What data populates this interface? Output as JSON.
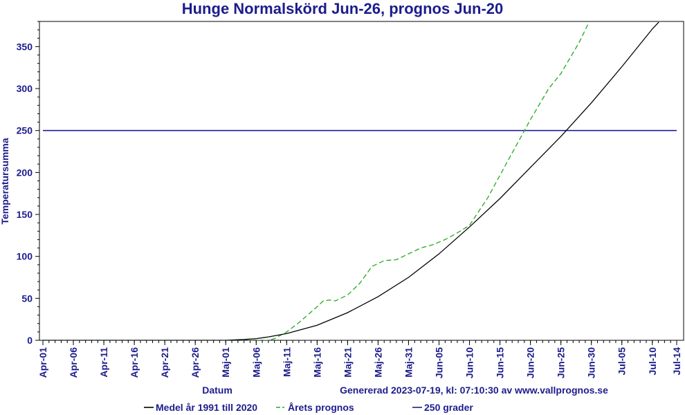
{
  "chart_data": {
    "type": "line",
    "title": "Hunge Normalskörd Jun-26, prognos Jun-20",
    "xlabel": "Datum",
    "ylabel": "Temperatursumma",
    "footer": "Genererad 2023-07-19, kl: 07:10:30 av www.vallprognos.se",
    "x_start": "2023-04-01",
    "x_end": "2023-07-14",
    "ylim": [
      0,
      380
    ],
    "y_ticks": [
      0,
      50,
      100,
      150,
      200,
      250,
      300,
      350
    ],
    "x_ticks": [
      "Apr-01",
      "Apr-06",
      "Apr-11",
      "Apr-16",
      "Apr-21",
      "Apr-26",
      "Maj-01",
      "Maj-06",
      "Maj-11",
      "Maj-16",
      "Maj-21",
      "Maj-26",
      "Maj-31",
      "Jun-05",
      "Jun-10",
      "Jun-15",
      "Jun-20",
      "Jun-25",
      "Jun-30",
      "Jul-05",
      "Jul-10",
      "Jul-14"
    ],
    "x_tick_dates": [
      "2023-04-01",
      "2023-04-06",
      "2023-04-11",
      "2023-04-16",
      "2023-04-21",
      "2023-04-26",
      "2023-05-01",
      "2023-05-06",
      "2023-05-11",
      "2023-05-16",
      "2023-05-21",
      "2023-05-26",
      "2023-05-31",
      "2023-06-05",
      "2023-06-10",
      "2023-06-15",
      "2023-06-20",
      "2023-06-25",
      "2023-06-30",
      "2023-07-05",
      "2023-07-10",
      "2023-07-14"
    ],
    "series": [
      {
        "name": "Medel år 1991 till 2020",
        "color": "#000000",
        "style": "solid",
        "points": [
          [
            "2023-04-01",
            0
          ],
          [
            "2023-04-26",
            0
          ],
          [
            "2023-05-01",
            0
          ],
          [
            "2023-05-04",
            1
          ],
          [
            "2023-05-06",
            2
          ],
          [
            "2023-05-08",
            4
          ],
          [
            "2023-05-11",
            8
          ],
          [
            "2023-05-16",
            18
          ],
          [
            "2023-05-21",
            33
          ],
          [
            "2023-05-26",
            52
          ],
          [
            "2023-05-31",
            75
          ],
          [
            "2023-06-05",
            103
          ],
          [
            "2023-06-10",
            135
          ],
          [
            "2023-06-15",
            169
          ],
          [
            "2023-06-20",
            206
          ],
          [
            "2023-06-25",
            243
          ],
          [
            "2023-06-30",
            283
          ],
          [
            "2023-07-05",
            326
          ],
          [
            "2023-07-10",
            371
          ],
          [
            "2023-07-14",
            402
          ]
        ]
      },
      {
        "name": "Årets prognos",
        "color": "#22aa22",
        "style": "dashed",
        "points": [
          [
            "2023-04-01",
            0
          ],
          [
            "2023-05-08",
            0
          ],
          [
            "2023-05-09",
            2
          ],
          [
            "2023-05-11",
            10
          ],
          [
            "2023-05-13",
            21
          ],
          [
            "2023-05-16",
            40
          ],
          [
            "2023-05-17",
            47
          ],
          [
            "2023-05-18",
            48
          ],
          [
            "2023-05-19",
            47
          ],
          [
            "2023-05-21",
            54
          ],
          [
            "2023-05-23",
            68
          ],
          [
            "2023-05-25",
            88
          ],
          [
            "2023-05-27",
            95
          ],
          [
            "2023-05-29",
            96
          ],
          [
            "2023-05-31",
            103
          ],
          [
            "2023-06-02",
            110
          ],
          [
            "2023-06-04",
            114
          ],
          [
            "2023-06-06",
            120
          ],
          [
            "2023-06-08",
            128
          ],
          [
            "2023-06-10",
            137
          ],
          [
            "2023-06-13",
            170
          ],
          [
            "2023-06-16",
            210
          ],
          [
            "2023-06-20",
            263
          ],
          [
            "2023-06-23",
            300
          ],
          [
            "2023-06-25",
            318
          ],
          [
            "2023-06-28",
            355
          ],
          [
            "2023-06-30",
            385
          ],
          [
            "2023-07-02",
            405
          ]
        ]
      },
      {
        "name": "250 grader",
        "color": "#1c1c8c",
        "style": "solid",
        "points": [
          [
            "2023-04-01",
            250
          ],
          [
            "2023-07-14",
            250
          ]
        ]
      }
    ]
  }
}
